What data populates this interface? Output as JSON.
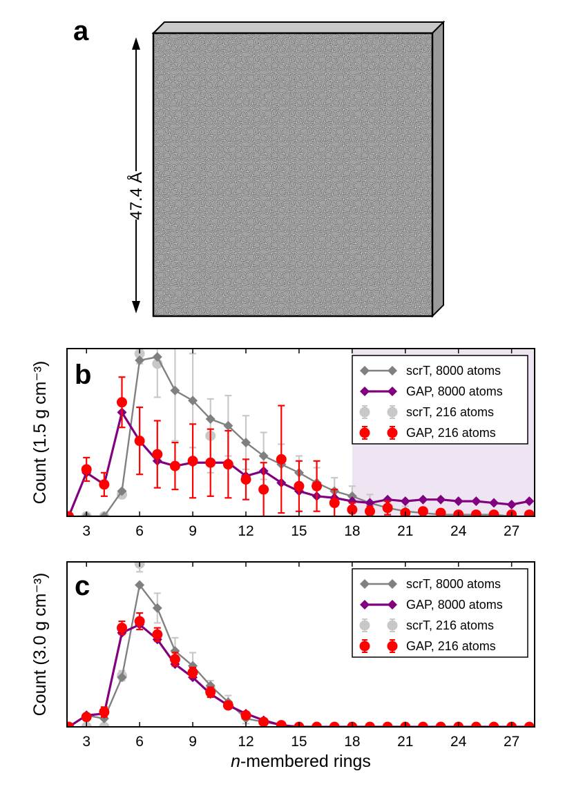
{
  "panel_a": {
    "letter": "a",
    "box_label": "47.4 Å"
  },
  "chart_data": [
    {
      "type": "line",
      "panel": "b",
      "ylabel": "Count (1.5 g cm⁻³)",
      "xlabel": "",
      "x": [
        2,
        3,
        4,
        5,
        6,
        7,
        8,
        9,
        10,
        11,
        12,
        13,
        14,
        15,
        16,
        17,
        18,
        19,
        20,
        21,
        22,
        23,
        24,
        25,
        26,
        27,
        28
      ],
      "xticks": [
        3,
        6,
        9,
        12,
        15,
        18,
        21,
        24,
        27
      ],
      "xlim": [
        1.9,
        28.3
      ],
      "ylim": [
        0,
        100
      ],
      "shaded_region": {
        "from": 18,
        "to": 28.3,
        "color": "#efe4f1"
      },
      "legend_position": "upper-right",
      "series": [
        {
          "name": "scrT, 8000 atoms",
          "color": "#808080",
          "kind": "line-diamond",
          "values": [
            0,
            0,
            0,
            15,
            93,
            95,
            75,
            69,
            58,
            54,
            44,
            36,
            31,
            26,
            20,
            15,
            12,
            8,
            5,
            3,
            2,
            1,
            1,
            1,
            1,
            0,
            0
          ]
        },
        {
          "name": "GAP, 8000 atoms",
          "color": "#800080",
          "kind": "line-diamond",
          "values": [
            0,
            26,
            19,
            62,
            45,
            33,
            30,
            32,
            32,
            32,
            24,
            27,
            20,
            15,
            12,
            11,
            9,
            8,
            10,
            9,
            10,
            10,
            9,
            9,
            8,
            7,
            9
          ]
        },
        {
          "name": "scrT, 216 atoms",
          "color": "#c8c8c8",
          "kind": "points-error",
          "values": [
            0,
            0,
            0,
            13,
            97,
            91,
            null,
            null,
            48,
            null,
            null,
            null,
            null,
            null,
            null,
            null,
            null,
            null,
            null,
            null,
            null,
            null,
            null,
            null,
            null,
            null,
            null
          ],
          "errors": [
            0,
            0,
            0,
            2,
            6,
            20,
            30,
            28,
            22,
            18,
            16,
            14,
            12,
            10,
            9,
            8,
            6,
            5,
            4,
            3,
            3,
            2,
            2,
            2,
            1,
            1,
            0
          ]
        },
        {
          "name": "GAP, 216 atoms",
          "color": "#ff0000",
          "kind": "points-error",
          "values": [
            0,
            28,
            19,
            68,
            45,
            37,
            30,
            33,
            32,
            31,
            22,
            16,
            34,
            18,
            18,
            8,
            4,
            3,
            5,
            2,
            3,
            2,
            1,
            1,
            1,
            1,
            1
          ],
          "errors": [
            0,
            7,
            7,
            15,
            20,
            20,
            14,
            22,
            20,
            20,
            12,
            16,
            32,
            15,
            15,
            8,
            4,
            3,
            4,
            2,
            2,
            2,
            1,
            1,
            1,
            1,
            1
          ]
        }
      ]
    },
    {
      "type": "line",
      "panel": "c",
      "ylabel": "Count (3.0 g cm⁻³)",
      "xlabel": "n-membered rings",
      "x": [
        2,
        3,
        4,
        5,
        6,
        7,
        8,
        9,
        10,
        11,
        12,
        13,
        14,
        15,
        16,
        17,
        18,
        19,
        20,
        21,
        22,
        23,
        24,
        25,
        26,
        27,
        28
      ],
      "xticks": [
        3,
        6,
        9,
        12,
        15,
        18,
        21,
        24,
        27
      ],
      "xlim": [
        1.9,
        28.3
      ],
      "ylim": [
        0,
        100
      ],
      "legend_position": "upper-right",
      "series": [
        {
          "name": "scrT, 8000 atoms",
          "color": "#808080",
          "kind": "line-diamond",
          "values": [
            0,
            7,
            5,
            30,
            86,
            72,
            46,
            37,
            25,
            15,
            5,
            3,
            1,
            0,
            0,
            0,
            0,
            0,
            0,
            0,
            0,
            0,
            0,
            0,
            0,
            0,
            0
          ]
        },
        {
          "name": "GAP, 8000 atoms",
          "color": "#800080",
          "kind": "line-diamond",
          "values": [
            0,
            7,
            8,
            57,
            62,
            53,
            38,
            30,
            20,
            13,
            8,
            4,
            1,
            0,
            0,
            0,
            0,
            0,
            0,
            0,
            0,
            0,
            0,
            0,
            0,
            0,
            0
          ]
        },
        {
          "name": "scrT, 216 atoms",
          "color": "#c8c8c8",
          "kind": "points-error",
          "values": [
            0,
            0,
            0,
            31,
            99,
            null,
            null,
            null,
            23,
            null,
            null,
            null,
            null,
            null,
            null,
            null,
            null,
            null,
            null,
            null,
            null,
            null,
            null,
            null,
            null,
            null,
            null
          ],
          "errors": [
            0,
            0,
            0,
            3,
            5,
            9,
            8,
            8,
            5,
            4,
            3,
            2,
            1,
            0,
            0,
            0,
            0,
            0,
            0,
            0,
            0,
            0,
            0,
            0,
            0,
            0,
            0
          ]
        },
        {
          "name": "GAP, 216 atoms",
          "color": "#ff0000",
          "kind": "points-error",
          "values": [
            0,
            6,
            9,
            60,
            64,
            56,
            41,
            33,
            21,
            13,
            7,
            3,
            1,
            0,
            0,
            0,
            0,
            0,
            0,
            0,
            0,
            0,
            0,
            0,
            0,
            0,
            0
          ],
          "errors": [
            0,
            2,
            3,
            4,
            5,
            4,
            4,
            3,
            3,
            2,
            2,
            1,
            1,
            0,
            0,
            0,
            0,
            0,
            0,
            0,
            0,
            0,
            0,
            0,
            0,
            0,
            0
          ]
        }
      ]
    }
  ]
}
